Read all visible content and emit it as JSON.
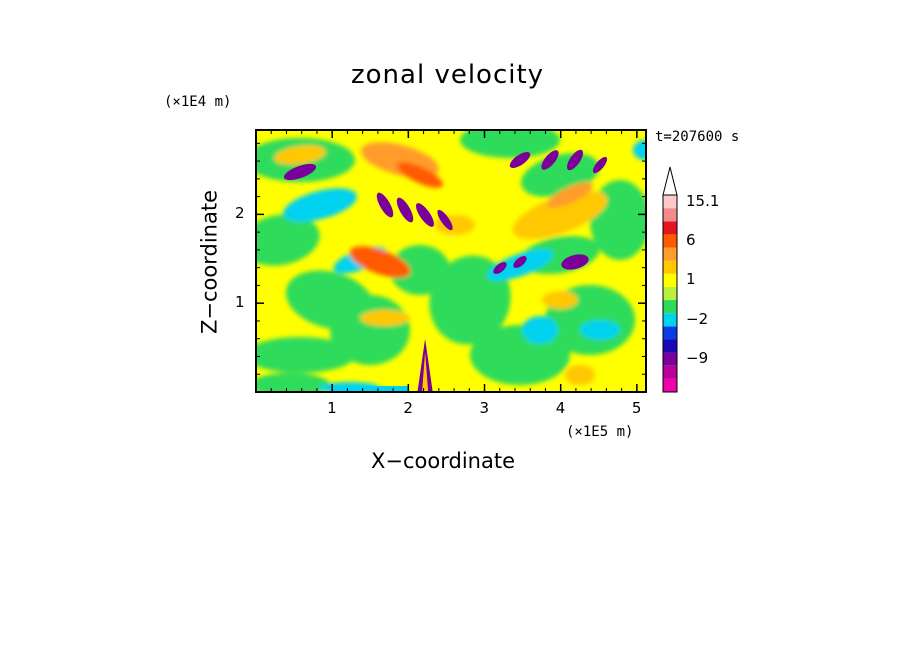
{
  "chart_data": {
    "type": "heatmap",
    "title": "zonal velocity",
    "xlabel": "X−coordinate",
    "ylabel": "Z−coordinate",
    "x_scale_label": "(×1E5 m)",
    "y_scale_label": "(×1E4 m)",
    "time_label": "t=207600 s",
    "xlim": [
      0,
      5.12
    ],
    "ylim": [
      0,
      2.95
    ],
    "x_ticks": [
      1,
      2,
      3,
      4,
      5
    ],
    "x_tick_labels": [
      "1",
      "2",
      "3",
      "4",
      "5"
    ],
    "y_ticks": [
      1,
      2
    ],
    "y_tick_labels": [
      "1",
      "2"
    ],
    "colorbar": {
      "levels": [
        -15,
        -12,
        -9,
        -6,
        -4,
        -2,
        -1,
        0,
        1,
        2,
        4,
        6,
        9,
        12,
        15.1
      ],
      "colors": [
        "#ee00aa",
        "#bb0099",
        "#7a0099",
        "#1a0ab4",
        "#0a3ce6",
        "#00d2f0",
        "#2edb5a",
        "#b8f03c",
        "#ffff00",
        "#ffc800",
        "#ff9c2a",
        "#ff5a00",
        "#e6141e",
        "#f08c8c",
        "#ffc8c8"
      ],
      "labels": [
        {
          "value": 15.1,
          "text": "15.1"
        },
        {
          "value": 6,
          "text": "6"
        },
        {
          "value": 1,
          "text": "1"
        },
        {
          "value": -2,
          "text": "−2"
        },
        {
          "value": -9,
          "text": "−9"
        }
      ],
      "extend": "max"
    },
    "features": [
      {
        "x": 0.55,
        "z": 2.5,
        "value": -8
      },
      {
        "x": 0.9,
        "z": 2.15,
        "value": -3
      },
      {
        "x": 0.55,
        "z": 2.72,
        "value": 4
      },
      {
        "x": 1.6,
        "z": 1.45,
        "value": 8
      },
      {
        "x": 1.1,
        "z": 1.7,
        "value": -3
      },
      {
        "x": 1.9,
        "z": 2.6,
        "value": 6
      },
      {
        "x": 1.95,
        "z": 2.05,
        "value": -8
      },
      {
        "x": 2.35,
        "z": 2.4,
        "value": 4
      },
      {
        "x": 3.75,
        "z": 2.65,
        "value": -8
      },
      {
        "x": 4.4,
        "z": 2.55,
        "value": -8
      },
      {
        "x": 3.9,
        "z": 2.1,
        "value": 4
      },
      {
        "x": 3.7,
        "z": 1.45,
        "value": -3
      },
      {
        "x": 4.25,
        "z": 1.55,
        "value": -8
      },
      {
        "x": 4.7,
        "z": 1.95,
        "value": 3
      },
      {
        "x": 4.8,
        "z": 0.75,
        "value": -3
      },
      {
        "x": 4.3,
        "z": 0.9,
        "value": -3
      },
      {
        "x": 0.9,
        "z": 0.55,
        "value": -1
      },
      {
        "x": 2.22,
        "z": 0.2,
        "value": -9
      },
      {
        "x": 2.1,
        "z": 0.03,
        "value": -3
      },
      {
        "x": 4.2,
        "z": 0.1,
        "value": 6
      }
    ]
  }
}
